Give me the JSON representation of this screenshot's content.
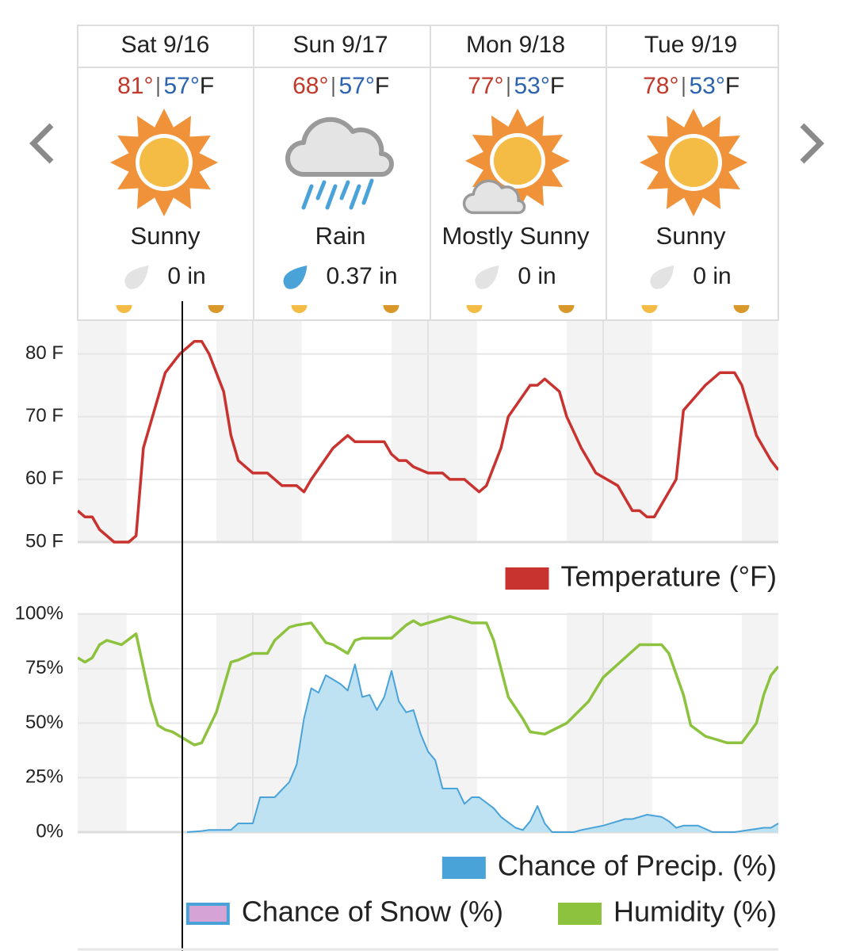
{
  "days": [
    {
      "label": "Sat 9/16",
      "high": "81°",
      "low": "57°",
      "condition": "Sunny",
      "precip": "0 in"
    },
    {
      "label": "Sun 9/17",
      "high": "68°",
      "low": "57°",
      "condition": "Rain",
      "precip": "0.37 in"
    },
    {
      "label": "Mon 9/18",
      "high": "77°",
      "low": "53°",
      "condition": "Mostly Sunny",
      "precip": "0 in"
    },
    {
      "label": "Tue 9/19",
      "high": "78°",
      "low": "53°",
      "condition": "Sunny",
      "precip": "0 in"
    }
  ],
  "temp_unit": "F",
  "chart_data": [
    {
      "type": "line",
      "xlim": [
        0,
        96
      ],
      "ylim": [
        50,
        85
      ],
      "yticks": [
        {
          "value": 50,
          "label": "50 F"
        },
        {
          "value": 60,
          "label": "60 F"
        },
        {
          "value": 70,
          "label": "70 F"
        },
        {
          "value": 80,
          "label": "80 F"
        }
      ],
      "grid": true,
      "series": [
        {
          "name": "Temperature (°F)",
          "color": "#c8322f",
          "x": [
            0,
            1,
            2,
            3,
            5,
            7,
            8,
            9,
            11,
            12,
            14,
            16,
            17,
            18,
            20,
            21,
            22,
            24,
            26,
            28,
            30,
            31,
            32,
            35,
            37,
            38,
            42,
            43,
            44,
            45,
            46,
            48,
            50,
            51,
            53,
            55,
            56,
            58,
            59,
            62,
            63,
            64,
            65,
            66,
            67,
            69,
            71,
            74,
            75,
            76,
            77,
            78,
            79,
            80,
            82,
            83,
            86,
            88,
            90,
            91,
            93,
            95,
            96
          ],
          "values": [
            55,
            54,
            54,
            52,
            50,
            50,
            51,
            65,
            73,
            77,
            80,
            82,
            82,
            80,
            74,
            67,
            63,
            61,
            61,
            59,
            59,
            58,
            60,
            65,
            67,
            66,
            66,
            64,
            63,
            63,
            62,
            61,
            61,
            60,
            60,
            58,
            59,
            65,
            70,
            75,
            75,
            76,
            75,
            74,
            70,
            65,
            61,
            59,
            57,
            55,
            55,
            54,
            54,
            56,
            60,
            71,
            75,
            77,
            77,
            75,
            67,
            63,
            61.5
          ]
        }
      ]
    },
    {
      "type": "line",
      "xlim": [
        0,
        96
      ],
      "ylim": [
        0,
        100
      ],
      "yticks": [
        {
          "value": 0,
          "label": "0%"
        },
        {
          "value": 25,
          "label": "25%"
        },
        {
          "value": 50,
          "label": "50%"
        },
        {
          "value": 75,
          "label": "75%"
        },
        {
          "value": 100,
          "label": "100%"
        }
      ],
      "grid": true,
      "series": [
        {
          "name": "Chance of Precip. (%)",
          "color": "#4aa3d8",
          "fill": "#bfe2f3",
          "area": true,
          "x": [
            15,
            17,
            18,
            21,
            22,
            24,
            25,
            27,
            29,
            30,
            31,
            32,
            33,
            34,
            36,
            37,
            38,
            39,
            40,
            41,
            42,
            43,
            44,
            45,
            46,
            47,
            48,
            49,
            50,
            52,
            53,
            54,
            55,
            57,
            58,
            60,
            61,
            62,
            63,
            64,
            65,
            68,
            69,
            72,
            75,
            76,
            77,
            78,
            80,
            81,
            82,
            83,
            85,
            87,
            90,
            92,
            94,
            95,
            96
          ],
          "values": [
            0,
            0.5,
            1,
            1,
            4,
            4,
            16,
            16,
            23,
            31,
            52,
            66,
            64,
            72,
            68,
            65,
            77,
            62,
            63,
            56,
            62,
            74,
            60,
            55,
            56,
            45,
            37,
            33,
            20,
            20,
            13,
            16,
            16,
            11,
            7,
            2,
            1,
            5,
            12,
            4,
            0,
            0,
            1,
            3,
            6,
            6,
            7,
            8,
            7,
            5,
            2,
            3,
            3,
            0,
            0,
            1,
            2,
            2,
            4
          ]
        },
        {
          "name": "Chance of Snow (%)",
          "color": "#d6a3d6"
        },
        {
          "name": "Humidity (%)",
          "color": "#8dc23f",
          "x": [
            0,
            1,
            2,
            3,
            4,
            6,
            8,
            10,
            11,
            12,
            13,
            15,
            16,
            17,
            19,
            21,
            22,
            24,
            26,
            27,
            29,
            30,
            32,
            34,
            35,
            37,
            38,
            39,
            41,
            43,
            45,
            46,
            47,
            49,
            51,
            52,
            54,
            56,
            57,
            59,
            61,
            62,
            64,
            67,
            70,
            72,
            75,
            77,
            80,
            81,
            83,
            84,
            86,
            88,
            89,
            91,
            93,
            94,
            95,
            96
          ],
          "values": [
            80,
            78,
            80,
            86,
            88,
            86,
            91,
            60,
            49,
            47,
            46,
            42,
            40,
            41,
            55,
            78,
            79,
            82,
            82,
            88,
            94,
            95,
            96,
            87,
            86,
            82,
            88,
            89,
            89,
            89,
            95,
            97,
            95,
            97,
            99,
            98,
            96,
            96,
            88,
            62,
            52,
            46,
            45,
            50,
            60,
            71,
            80,
            86,
            86,
            82,
            63,
            49,
            44,
            42,
            41,
            41,
            50,
            63,
            72,
            76
          ]
        }
      ]
    }
  ]
}
